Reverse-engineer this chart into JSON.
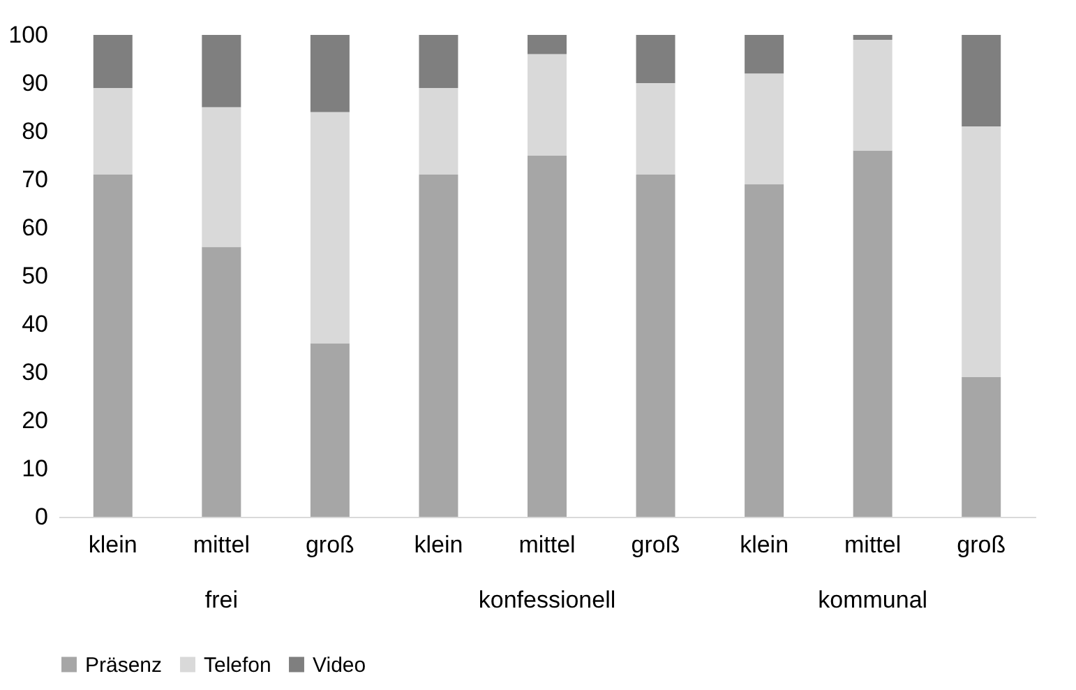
{
  "chart_data": {
    "type": "bar",
    "stacked": true,
    "categories": [
      "klein",
      "mittel",
      "groß",
      "klein",
      "mittel",
      "groß",
      "klein",
      "mittel",
      "groß"
    ],
    "annotations": [
      "frei",
      "konfessionell",
      "kommunal"
    ],
    "series": [
      {
        "name": "Präsenz",
        "color": "#a6a6a6",
        "values": [
          71,
          56,
          36,
          71,
          75,
          71,
          69,
          76,
          29
        ]
      },
      {
        "name": "Telefon",
        "color": "#d9d9d9",
        "values": [
          18,
          29,
          48,
          18,
          21,
          19,
          23,
          23,
          52
        ]
      },
      {
        "name": "Video",
        "color": "#7f7f7f",
        "values": [
          11,
          15,
          16,
          11,
          4,
          10,
          8,
          1,
          19
        ]
      }
    ],
    "ylim": [
      0,
      100
    ],
    "yticks": [
      0,
      10,
      20,
      30,
      40,
      50,
      60,
      70,
      80,
      90,
      100
    ],
    "grid": false,
    "legend": "bottom"
  }
}
